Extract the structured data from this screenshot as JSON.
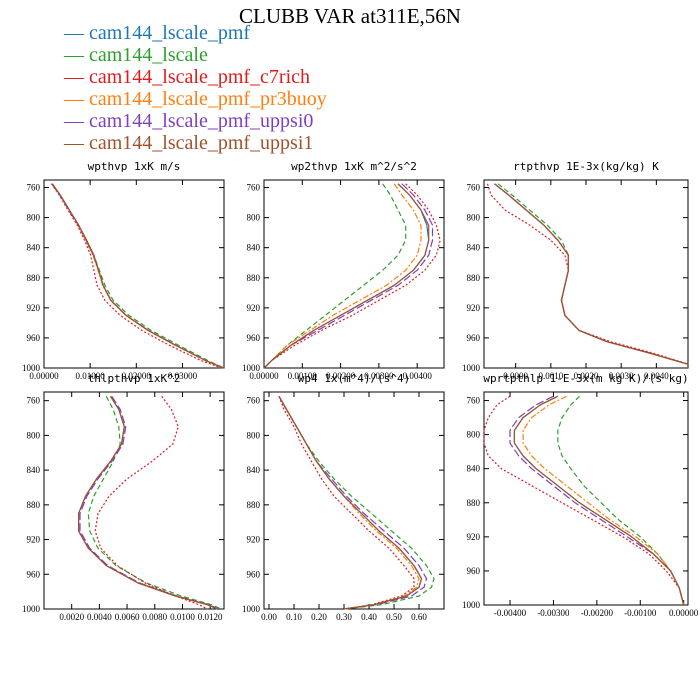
{
  "title": "CLUBB VAR at311E,56N",
  "colors": {
    "cam144_lscale_pmf": "#1f77b4",
    "cam144_lscale": "#2ca02c",
    "cam144_lscale_pmf_c7rich": "#e31a1c",
    "cam144_lscale_pmf_pr3buoy": "#ff7f0e",
    "cam144_lscale_pmf_uppsi0": "#7f3fbf",
    "cam144_lscale_pmf_uppsi1": "#a0522d"
  },
  "legend": [
    {
      "label": "cam144_lscale_pmf",
      "color": "#1f77b4"
    },
    {
      "label": "cam144_lscale",
      "color": "#2ca02c"
    },
    {
      "label": "cam144_lscale_pmf_c7rich",
      "color": "#e31a1c"
    },
    {
      "label": "cam144_lscale_pmf_pr3buoy",
      "color": "#ff7f0e"
    },
    {
      "label": "cam144_lscale_pmf_uppsi0",
      "color": "#7f3fbf"
    },
    {
      "label": "cam144_lscale_pmf_uppsi1",
      "color": "#a0522d"
    }
  ],
  "chart_data": [
    {
      "type": "line",
      "title": "wpthvp  1xK m/s",
      "xlim": [
        0.0,
        0.039
      ],
      "ylim": [
        1000,
        750
      ],
      "xticks": [
        "0.00000",
        "0.01000",
        "0.02000",
        "0.03000"
      ],
      "yticks": [
        "760",
        "800",
        "840",
        "880",
        "920",
        "960",
        "1000"
      ],
      "y": [
        755,
        770,
        790,
        810,
        830,
        850,
        870,
        890,
        910,
        930,
        950,
        970,
        990,
        1000
      ],
      "series": [
        {
          "name": "cam144_lscale_pmf",
          "x": [
            0.0018,
            0.0035,
            0.0055,
            0.0075,
            0.0092,
            0.0108,
            0.0118,
            0.0128,
            0.0145,
            0.0178,
            0.0225,
            0.0285,
            0.035,
            0.039
          ]
        },
        {
          "name": "cam144_lscale",
          "x": [
            0.0018,
            0.0035,
            0.0055,
            0.0075,
            0.0092,
            0.0108,
            0.012,
            0.0132,
            0.015,
            0.0184,
            0.0232,
            0.0292,
            0.0355,
            0.039
          ]
        },
        {
          "name": "cam144_lscale_pmf_c7rich",
          "x": [
            0.0016,
            0.0033,
            0.0052,
            0.0072,
            0.0088,
            0.0101,
            0.0108,
            0.0115,
            0.0132,
            0.0165,
            0.0212,
            0.0272,
            0.034,
            0.0385
          ]
        },
        {
          "name": "cam144_lscale_pmf_pr3buoy",
          "x": [
            0.0017,
            0.0034,
            0.0054,
            0.0074,
            0.009,
            0.0106,
            0.0117,
            0.0127,
            0.0144,
            0.0177,
            0.0225,
            0.0285,
            0.035,
            0.0389
          ]
        },
        {
          "name": "cam144_lscale_pmf_uppsi0",
          "x": [
            0.0017,
            0.0034,
            0.0054,
            0.0074,
            0.0091,
            0.0107,
            0.0118,
            0.0128,
            0.0145,
            0.0178,
            0.0226,
            0.0286,
            0.035,
            0.0389
          ]
        },
        {
          "name": "cam144_lscale_pmf_uppsi1",
          "x": [
            0.0018,
            0.0035,
            0.0055,
            0.0075,
            0.0092,
            0.0108,
            0.0118,
            0.0128,
            0.0145,
            0.0178,
            0.0226,
            0.0286,
            0.035,
            0.0389
          ]
        }
      ]
    },
    {
      "type": "line",
      "title": "wp2thvp  1xK m^2/s^2",
      "xlim": [
        0.0,
        0.0047
      ],
      "ylim": [
        1000,
        750
      ],
      "xticks": [
        "0.00000",
        "0.00100",
        "0.00200",
        "0.00300",
        "0.00400"
      ],
      "yticks": [
        "760",
        "800",
        "840",
        "880",
        "920",
        "960",
        "1000"
      ],
      "y": [
        755,
        770,
        790,
        810,
        830,
        850,
        870,
        890,
        910,
        930,
        950,
        970,
        990,
        1000
      ],
      "series": [
        {
          "name": "cam144_lscale_pmf",
          "x": [
            0.0035,
            0.0038,
            0.0041,
            0.00425,
            0.0043,
            0.0042,
            0.0039,
            0.0034,
            0.0027,
            0.002,
            0.0013,
            0.0007,
            0.0002,
            0.0
          ]
        },
        {
          "name": "cam144_lscale",
          "x": [
            0.0031,
            0.0033,
            0.0035,
            0.0037,
            0.0037,
            0.0035,
            0.0031,
            0.0026,
            0.0021,
            0.0016,
            0.0011,
            0.0006,
            0.0002,
            0.0
          ]
        },
        {
          "name": "cam144_lscale_pmf_c7rich",
          "x": [
            0.0037,
            0.004,
            0.0043,
            0.0045,
            0.0046,
            0.0045,
            0.0042,
            0.0037,
            0.003,
            0.0023,
            0.0015,
            0.0008,
            0.0002,
            0.0
          ]
        },
        {
          "name": "cam144_lscale_pmf_pr3buoy",
          "x": [
            0.0034,
            0.0036,
            0.0039,
            0.0041,
            0.0041,
            0.004,
            0.0037,
            0.0032,
            0.0025,
            0.0018,
            0.0012,
            0.0006,
            0.0002,
            0.0
          ]
        },
        {
          "name": "cam144_lscale_pmf_uppsi0",
          "x": [
            0.0036,
            0.0039,
            0.0042,
            0.0044,
            0.0044,
            0.0043,
            0.004,
            0.0035,
            0.0028,
            0.0021,
            0.0014,
            0.0007,
            0.0002,
            0.0
          ]
        },
        {
          "name": "cam144_lscale_pmf_uppsi1",
          "x": [
            0.0035,
            0.0038,
            0.0041,
            0.0043,
            0.0043,
            0.0042,
            0.0039,
            0.0034,
            0.0027,
            0.002,
            0.0013,
            0.0007,
            0.0002,
            0.0
          ]
        }
      ]
    },
    {
      "type": "line",
      "title": "rtpthvp  1E-3x(kg/kg) K",
      "xlim": [
        -0.0009,
        0.0049
      ],
      "ylim": [
        1000,
        750
      ],
      "xticks": [
        "0.0000",
        "0.0010",
        "0.0020",
        "0.0030",
        "0.0040"
      ],
      "yticks": [
        "760",
        "800",
        "840",
        "880",
        "920",
        "960",
        "1000"
      ],
      "y": [
        755,
        770,
        790,
        810,
        830,
        850,
        870,
        890,
        910,
        930,
        950,
        965,
        980,
        995,
        1000
      ],
      "series": [
        {
          "name": "cam144_lscale_pmf",
          "x": [
            -0.0006,
            -0.0002,
            0.0003,
            0.0008,
            0.0012,
            0.0015,
            0.0015,
            0.0014,
            0.0013,
            0.0014,
            0.0018,
            0.0026,
            0.0038,
            0.0049,
            0.0049
          ]
        },
        {
          "name": "cam144_lscale",
          "x": [
            -0.0005,
            -0.0001,
            0.0004,
            0.0009,
            0.0013,
            0.0015,
            0.0015,
            0.0014,
            0.0013,
            0.0014,
            0.0018,
            0.0026,
            0.0038,
            0.0049,
            0.0049
          ]
        },
        {
          "name": "cam144_lscale_pmf_c7rich",
          "x": [
            -0.0008,
            -0.0007,
            -0.0003,
            0.0004,
            0.001,
            0.0014,
            0.0015,
            0.0014,
            0.0013,
            0.0014,
            0.0018,
            0.0027,
            0.0039,
            0.0049,
            0.0049
          ]
        },
        {
          "name": "cam144_lscale_pmf_pr3buoy",
          "x": [
            -0.0006,
            -0.0002,
            0.0003,
            0.0008,
            0.0012,
            0.0015,
            0.0015,
            0.0014,
            0.0013,
            0.0014,
            0.0018,
            0.0026,
            0.0038,
            0.0049,
            0.0049
          ]
        },
        {
          "name": "cam144_lscale_pmf_uppsi0",
          "x": [
            -0.0006,
            -0.0002,
            0.0003,
            0.0008,
            0.0012,
            0.0015,
            0.0015,
            0.0014,
            0.0013,
            0.0014,
            0.0018,
            0.0026,
            0.0038,
            0.0049,
            0.0049
          ]
        },
        {
          "name": "cam144_lscale_pmf_uppsi1",
          "x": [
            -0.0006,
            -0.0002,
            0.0003,
            0.0008,
            0.0012,
            0.0015,
            0.0015,
            0.0014,
            0.0013,
            0.0014,
            0.0018,
            0.0026,
            0.0038,
            0.0049,
            0.0049
          ]
        }
      ]
    },
    {
      "type": "line",
      "title": "thlpthvp  1xK^2",
      "xlim": [
        0.0,
        0.013
      ],
      "ylim": [
        1000,
        750
      ],
      "xticks": [
        "0.0020",
        "0.0040",
        "0.0060",
        "0.0080",
        "0.0100",
        "0.0120"
      ],
      "yticks": [
        "760",
        "800",
        "840",
        "880",
        "920",
        "960",
        "1000"
      ],
      "y": [
        755,
        770,
        790,
        810,
        830,
        850,
        870,
        890,
        910,
        930,
        950,
        970,
        985,
        995,
        1000
      ],
      "series": [
        {
          "name": "cam144_lscale_pmf",
          "x": [
            0.0048,
            0.0054,
            0.0058,
            0.0056,
            0.0048,
            0.0038,
            0.003,
            0.0025,
            0.0025,
            0.0032,
            0.0045,
            0.0068,
            0.0095,
            0.0118,
            0.0125
          ]
        },
        {
          "name": "cam144_lscale",
          "x": [
            0.0045,
            0.005,
            0.0054,
            0.0055,
            0.005,
            0.0043,
            0.0036,
            0.0032,
            0.0033,
            0.0039,
            0.0052,
            0.0074,
            0.0099,
            0.0121,
            0.0128
          ]
        },
        {
          "name": "cam144_lscale_pmf_c7rich",
          "x": [
            0.0085,
            0.0092,
            0.0097,
            0.0093,
            0.0078,
            0.006,
            0.0047,
            0.0039,
            0.0037,
            0.0041,
            0.0053,
            0.0073,
            0.0095,
            0.0112,
            0.0118
          ]
        },
        {
          "name": "cam144_lscale_pmf_pr3buoy",
          "x": [
            0.0048,
            0.0054,
            0.0058,
            0.0056,
            0.0048,
            0.0038,
            0.003,
            0.0025,
            0.0025,
            0.0032,
            0.0045,
            0.0068,
            0.0095,
            0.0118,
            0.0125
          ]
        },
        {
          "name": "cam144_lscale_pmf_uppsi0",
          "x": [
            0.0049,
            0.0055,
            0.0059,
            0.0057,
            0.0049,
            0.0039,
            0.0031,
            0.0026,
            0.0026,
            0.0033,
            0.0046,
            0.0069,
            0.0096,
            0.0119,
            0.0126
          ]
        },
        {
          "name": "cam144_lscale_pmf_uppsi1",
          "x": [
            0.0048,
            0.0054,
            0.0058,
            0.0056,
            0.0048,
            0.0038,
            0.003,
            0.0025,
            0.0025,
            0.0032,
            0.0045,
            0.0068,
            0.0095,
            0.0118,
            0.0125
          ]
        }
      ]
    },
    {
      "type": "line",
      "title": "wp4  1x(m^4)/(s^4)",
      "xlim": [
        -0.02,
        0.7
      ],
      "ylim": [
        1000,
        750
      ],
      "xticks": [
        "0.00",
        "0.10",
        "0.20",
        "0.30",
        "0.40",
        "0.50",
        "0.60"
      ],
      "yticks": [
        "760",
        "800",
        "840",
        "880",
        "920",
        "960",
        "1000"
      ],
      "y": [
        755,
        770,
        790,
        810,
        830,
        850,
        870,
        890,
        910,
        930,
        950,
        965,
        975,
        985,
        995,
        1000
      ],
      "series": [
        {
          "name": "cam144_lscale_pmf",
          "x": [
            0.04,
            0.07,
            0.11,
            0.15,
            0.19,
            0.24,
            0.3,
            0.37,
            0.44,
            0.52,
            0.58,
            0.61,
            0.6,
            0.55,
            0.42,
            0.3
          ]
        },
        {
          "name": "cam144_lscale",
          "x": [
            0.04,
            0.07,
            0.11,
            0.15,
            0.2,
            0.26,
            0.33,
            0.41,
            0.49,
            0.57,
            0.63,
            0.66,
            0.65,
            0.6,
            0.45,
            0.3
          ]
        },
        {
          "name": "cam144_lscale_pmf_c7rich",
          "x": [
            0.04,
            0.06,
            0.1,
            0.13,
            0.17,
            0.21,
            0.26,
            0.33,
            0.4,
            0.48,
            0.54,
            0.58,
            0.58,
            0.53,
            0.41,
            0.3
          ]
        },
        {
          "name": "cam144_lscale_pmf_pr3buoy",
          "x": [
            0.04,
            0.07,
            0.11,
            0.15,
            0.19,
            0.24,
            0.3,
            0.36,
            0.43,
            0.51,
            0.57,
            0.6,
            0.59,
            0.54,
            0.42,
            0.3
          ]
        },
        {
          "name": "cam144_lscale_pmf_uppsi0",
          "x": [
            0.04,
            0.07,
            0.11,
            0.15,
            0.19,
            0.25,
            0.31,
            0.38,
            0.46,
            0.54,
            0.6,
            0.63,
            0.62,
            0.57,
            0.43,
            0.3
          ]
        },
        {
          "name": "cam144_lscale_pmf_uppsi1",
          "x": [
            0.04,
            0.07,
            0.11,
            0.15,
            0.19,
            0.24,
            0.3,
            0.37,
            0.44,
            0.52,
            0.58,
            0.61,
            0.6,
            0.55,
            0.42,
            0.3
          ]
        }
      ]
    },
    {
      "type": "line",
      "title": "wprtpthlp  1-E-3x(m kg K)/(s kg)",
      "xlim": [
        -0.0046,
        0.0001
      ],
      "ylim": [
        1000,
        750
      ],
      "xticks": [
        "-0.00400",
        "-0.00300",
        "-0.00200",
        "-0.00100",
        "0.00000"
      ],
      "yticks": [
        "760",
        "800",
        "840",
        "880",
        "920",
        "960",
        "1000"
      ],
      "y": [
        755,
        765,
        780,
        795,
        810,
        825,
        840,
        860,
        880,
        900,
        920,
        940,
        960,
        980,
        1000
      ],
      "series": [
        {
          "name": "cam144_lscale_pmf",
          "x": [
            -0.0029,
            -0.0033,
            -0.0037,
            -0.0039,
            -0.0039,
            -0.0037,
            -0.0034,
            -0.0029,
            -0.0024,
            -0.0018,
            -0.0012,
            -0.0007,
            -0.0003,
            -0.0001,
            0.0
          ]
        },
        {
          "name": "cam144_lscale",
          "x": [
            -0.0024,
            -0.0026,
            -0.0028,
            -0.0029,
            -0.0029,
            -0.0028,
            -0.0026,
            -0.0023,
            -0.0019,
            -0.0015,
            -0.001,
            -0.0006,
            -0.0003,
            -0.0001,
            0.0
          ]
        },
        {
          "name": "cam144_lscale_pmf_c7rich",
          "x": [
            -0.004,
            -0.0043,
            -0.0045,
            -0.0046,
            -0.0046,
            -0.0045,
            -0.0042,
            -0.0035,
            -0.0028,
            -0.0021,
            -0.0014,
            -0.0008,
            -0.0004,
            -0.0001,
            0.0
          ]
        },
        {
          "name": "cam144_lscale_pmf_pr3buoy",
          "x": [
            -0.0027,
            -0.0031,
            -0.0035,
            -0.0037,
            -0.0037,
            -0.0035,
            -0.0032,
            -0.0027,
            -0.0022,
            -0.0017,
            -0.0011,
            -0.0006,
            -0.0003,
            -0.0001,
            0.0
          ]
        },
        {
          "name": "cam144_lscale_pmf_uppsi0",
          "x": [
            -0.003,
            -0.0034,
            -0.0038,
            -0.004,
            -0.004,
            -0.0038,
            -0.0035,
            -0.003,
            -0.0025,
            -0.0019,
            -0.0013,
            -0.0007,
            -0.0003,
            -0.0001,
            0.0
          ]
        },
        {
          "name": "cam144_lscale_pmf_uppsi1",
          "x": [
            -0.0029,
            -0.0033,
            -0.0037,
            -0.0039,
            -0.0039,
            -0.0037,
            -0.0034,
            -0.0029,
            -0.0024,
            -0.0018,
            -0.0012,
            -0.0007,
            -0.0003,
            -0.0001,
            0.0
          ]
        }
      ]
    }
  ]
}
